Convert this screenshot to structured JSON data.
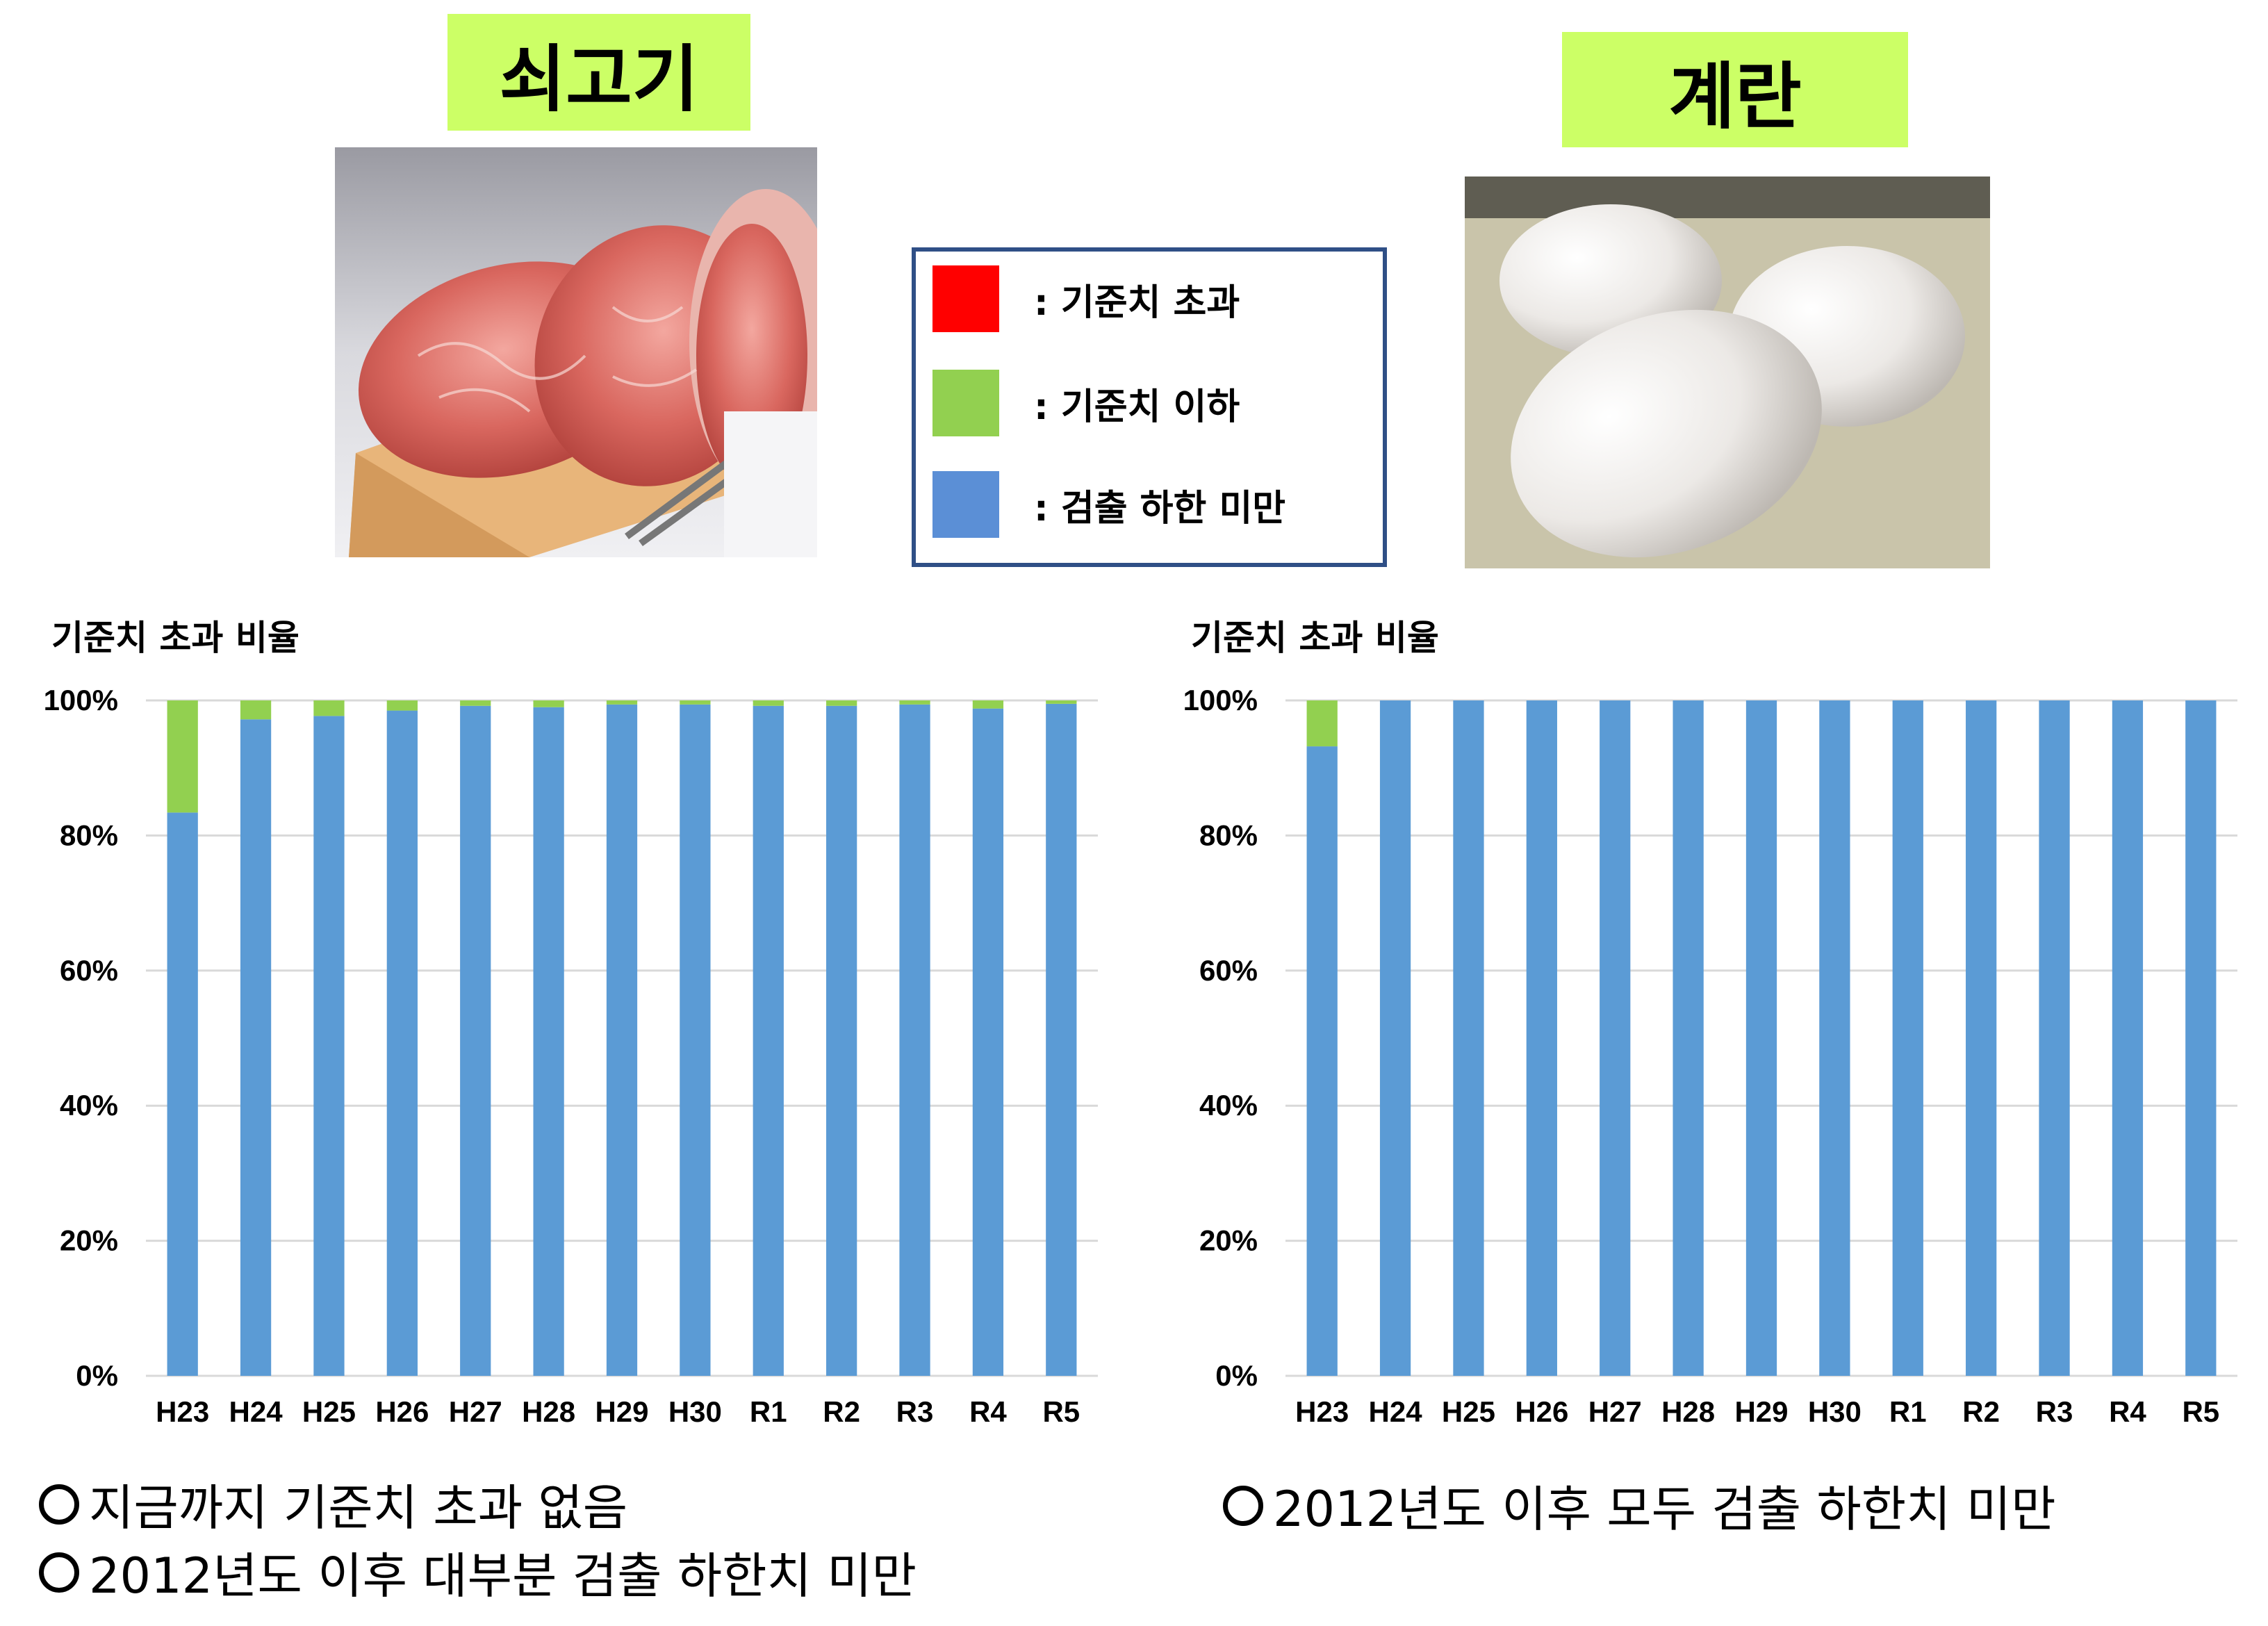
{
  "beef": {
    "title": "쇠고기",
    "image": "beef-photo"
  },
  "egg": {
    "title": "계란",
    "image": "egg-photo"
  },
  "legend": {
    "items": [
      {
        "label": ": 기준치 초과",
        "color": "#ff0000"
      },
      {
        "label": ": 기준치 이하",
        "color": "#92d050"
      },
      {
        "label": ": 검출 하한 미만",
        "color": "#5b8fd6"
      }
    ]
  },
  "chart_data": [
    {
      "type": "bar",
      "stacked": true,
      "title": "기준치 초과 비율",
      "categories": [
        "H23",
        "H24",
        "H25",
        "H26",
        "H27",
        "H28",
        "H29",
        "H30",
        "R1",
        "R2",
        "R3",
        "R4",
        "R5"
      ],
      "series": [
        {
          "name": "검출 하한 미만",
          "color": "#5b9bd5",
          "values": [
            83.4,
            97.2,
            97.7,
            98.5,
            99.2,
            99.0,
            99.4,
            99.4,
            99.2,
            99.2,
            99.4,
            98.8,
            99.5
          ]
        },
        {
          "name": "기준치 이하",
          "color": "#92d050",
          "values": [
            16.6,
            2.8,
            2.3,
            1.5,
            0.8,
            1.0,
            0.6,
            0.6,
            0.8,
            0.8,
            0.6,
            1.2,
            0.5
          ]
        },
        {
          "name": "기준치 초과",
          "color": "#ff0000",
          "values": [
            0,
            0,
            0,
            0,
            0,
            0,
            0,
            0,
            0,
            0,
            0,
            0,
            0
          ]
        }
      ],
      "yticks": [
        "0%",
        "20%",
        "40%",
        "60%",
        "80%",
        "100%"
      ],
      "ylim": [
        0,
        100
      ],
      "grid": true
    },
    {
      "type": "bar",
      "stacked": true,
      "title": "기준치 초과 비율",
      "categories": [
        "H23",
        "H24",
        "H25",
        "H26",
        "H27",
        "H28",
        "H29",
        "H30",
        "R1",
        "R2",
        "R3",
        "R4",
        "R5"
      ],
      "series": [
        {
          "name": "검출 하한 미만",
          "color": "#5b9bd5",
          "values": [
            93.2,
            100,
            100,
            100,
            100,
            100,
            100,
            100,
            100,
            100,
            100,
            100,
            100
          ]
        },
        {
          "name": "기준치 이하",
          "color": "#92d050",
          "values": [
            6.8,
            0,
            0,
            0,
            0,
            0,
            0,
            0,
            0,
            0,
            0,
            0,
            0
          ]
        },
        {
          "name": "기준치 초과",
          "color": "#ff0000",
          "values": [
            0,
            0,
            0,
            0,
            0,
            0,
            0,
            0,
            0,
            0,
            0,
            0,
            0
          ]
        }
      ],
      "yticks": [
        "0%",
        "20%",
        "40%",
        "60%",
        "80%",
        "100%"
      ],
      "ylim": [
        0,
        100
      ],
      "grid": true
    }
  ],
  "notes": {
    "beef_line1": "지금까지 기준치 초과 없음",
    "beef_line2": " 2012년도 이후 대부분 검출 하한치 미만",
    "egg_line1": " 2012년도 이후 모두 검출 하한치 미만"
  }
}
